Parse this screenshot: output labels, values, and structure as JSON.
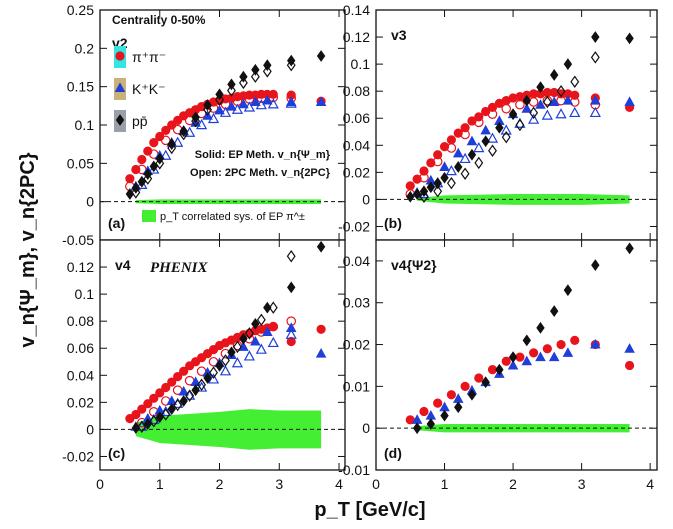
{
  "figure": {
    "ylabel": "v_n{Ψ_m}, v_n{2PC}",
    "xlabel": "p_T [GeV/c]",
    "centrality": "Centrality 0-50%",
    "experiment": "PHENIX",
    "legend": {
      "pion": "π⁺π⁻",
      "kaon": "K⁺K⁻",
      "proton": "pp̄",
      "solid_note": "Solid: EP Meth. v_n{Ψ_m}",
      "open_note": "Open: 2PC Meth. v_n{2PC}",
      "sys_note": "p_T correlated sys. of EP π^±"
    },
    "colors": {
      "pion": "#e8141c",
      "kaon": "#1f3fd8",
      "proton": "#111111",
      "sys_band": "#44ee33",
      "pion_box": "#33e6e6",
      "kaon_box": "#c8b27a",
      "proton_box": "#9aa0aa"
    }
  },
  "chart_data": [
    {
      "type": "scatter",
      "panel_label": "(a)",
      "harmonic_label": "v2",
      "xlim": [
        0,
        4.1
      ],
      "ylim": [
        -0.05,
        0.25
      ],
      "yticks": [
        "-0.05",
        "0",
        "0.05",
        "0.1",
        "0.15",
        "0.2",
        "0.25"
      ],
      "xticks": [
        "0",
        "1",
        "2",
        "3",
        "4"
      ],
      "series": [
        {
          "name": "π⁺π⁻",
          "method": "EP",
          "x": [
            0.5,
            0.6,
            0.7,
            0.8,
            0.9,
            1.0,
            1.1,
            1.2,
            1.3,
            1.4,
            1.5,
            1.6,
            1.7,
            1.8,
            1.9,
            2.0,
            2.1,
            2.2,
            2.3,
            2.4,
            2.5,
            2.6,
            2.7,
            2.8,
            2.9,
            3.2,
            3.7
          ],
          "y": [
            0.03,
            0.042,
            0.055,
            0.066,
            0.077,
            0.085,
            0.093,
            0.1,
            0.106,
            0.112,
            0.116,
            0.12,
            0.124,
            0.127,
            0.13,
            0.132,
            0.134,
            0.135,
            0.137,
            0.138,
            0.139,
            0.139,
            0.14,
            0.14,
            0.14,
            0.139,
            0.131
          ]
        },
        {
          "name": "π⁺π⁻",
          "method": "2PC",
          "x": [
            0.5,
            0.7,
            0.9,
            1.1,
            1.3,
            1.5,
            1.7,
            1.9,
            2.1,
            2.3,
            2.5,
            2.7,
            2.9,
            3.2
          ],
          "y": [
            0.02,
            0.042,
            0.062,
            0.08,
            0.094,
            0.106,
            0.115,
            0.122,
            0.127,
            0.131,
            0.134,
            0.135,
            0.136,
            0.135
          ]
        },
        {
          "name": "K⁺K⁻",
          "method": "EP",
          "x": [
            0.6,
            0.8,
            1.0,
            1.2,
            1.4,
            1.6,
            1.8,
            2.0,
            2.2,
            2.4,
            2.6,
            2.8,
            3.2,
            3.7
          ],
          "y": [
            0.02,
            0.04,
            0.06,
            0.077,
            0.092,
            0.103,
            0.112,
            0.119,
            0.124,
            0.127,
            0.13,
            0.132,
            0.13,
            0.13
          ]
        },
        {
          "name": "K⁺K⁻",
          "method": "2PC",
          "x": [
            0.7,
            0.9,
            1.1,
            1.3,
            1.5,
            1.7,
            1.9,
            2.1,
            2.3,
            2.5,
            2.7,
            2.9,
            3.2
          ],
          "y": [
            0.022,
            0.042,
            0.06,
            0.077,
            0.09,
            0.1,
            0.108,
            0.116,
            0.12,
            0.123,
            0.126,
            0.127,
            0.128
          ]
        },
        {
          "name": "pp̄",
          "method": "EP",
          "x": [
            0.5,
            0.6,
            0.7,
            0.8,
            0.9,
            1.0,
            1.2,
            1.4,
            1.6,
            1.8,
            2.0,
            2.2,
            2.4,
            2.6,
            2.8,
            3.2,
            3.7
          ],
          "y": [
            0.01,
            0.018,
            0.026,
            0.036,
            0.046,
            0.056,
            0.075,
            0.092,
            0.11,
            0.126,
            0.14,
            0.153,
            0.163,
            0.172,
            0.178,
            0.184,
            0.19
          ]
        },
        {
          "name": "pp̄",
          "method": "2PC",
          "x": [
            0.6,
            0.8,
            1.0,
            1.2,
            1.4,
            1.6,
            1.8,
            2.0,
            2.2,
            2.4,
            2.6,
            2.8,
            3.2
          ],
          "y": [
            0.012,
            0.03,
            0.05,
            0.07,
            0.088,
            0.105,
            0.12,
            0.133,
            0.145,
            0.155,
            0.163,
            0.17,
            0.178
          ]
        },
        {
          "name": "sys",
          "x": [
            0.6,
            1.0,
            2.0,
            3.0,
            3.7
          ],
          "band_halfwidth": [
            0.002,
            0.003,
            0.003,
            0.003,
            0.003
          ]
        }
      ]
    },
    {
      "type": "scatter",
      "panel_label": "(b)",
      "harmonic_label": "v3",
      "xlim": [
        0,
        4.1
      ],
      "ylim": [
        -0.03,
        0.14
      ],
      "yticks": [
        "-0.02",
        "0",
        "0.02",
        "0.04",
        "0.06",
        "0.08",
        "0.1",
        "0.12",
        "0.14"
      ],
      "xticks": [
        "0",
        "1",
        "2",
        "3",
        "4"
      ],
      "series": [
        {
          "name": "π⁺π⁻",
          "method": "EP",
          "x": [
            0.5,
            0.6,
            0.7,
            0.8,
            0.9,
            1.0,
            1.1,
            1.2,
            1.3,
            1.4,
            1.5,
            1.6,
            1.7,
            1.8,
            1.9,
            2.0,
            2.1,
            2.2,
            2.3,
            2.4,
            2.5,
            2.6,
            2.7,
            2.8,
            2.9,
            3.2,
            3.7
          ],
          "y": [
            0.01,
            0.015,
            0.021,
            0.027,
            0.033,
            0.039,
            0.044,
            0.049,
            0.053,
            0.058,
            0.061,
            0.065,
            0.068,
            0.071,
            0.073,
            0.075,
            0.076,
            0.077,
            0.078,
            0.078,
            0.079,
            0.079,
            0.078,
            0.078,
            0.077,
            0.075,
            0.068
          ]
        },
        {
          "name": "π⁺π⁻",
          "method": "2PC",
          "x": [
            0.5,
            0.7,
            0.9,
            1.1,
            1.3,
            1.5,
            1.7,
            1.9,
            2.1,
            2.3,
            2.5,
            2.7,
            2.9,
            3.2
          ],
          "y": [
            0.004,
            0.016,
            0.028,
            0.038,
            0.048,
            0.057,
            0.063,
            0.067,
            0.07,
            0.072,
            0.073,
            0.073,
            0.072,
            0.07
          ]
        },
        {
          "name": "K⁺K⁻",
          "method": "EP",
          "x": [
            0.6,
            0.8,
            1.0,
            1.2,
            1.4,
            1.6,
            1.8,
            2.0,
            2.2,
            2.4,
            2.6,
            2.8,
            3.2,
            3.7
          ],
          "y": [
            0.005,
            0.014,
            0.024,
            0.034,
            0.043,
            0.051,
            0.058,
            0.063,
            0.067,
            0.07,
            0.072,
            0.073,
            0.073,
            0.072
          ]
        },
        {
          "name": "K⁺K⁻",
          "method": "2PC",
          "x": [
            0.7,
            0.9,
            1.1,
            1.3,
            1.5,
            1.7,
            1.9,
            2.1,
            2.3,
            2.5,
            2.7,
            2.9,
            3.2
          ],
          "y": [
            0.004,
            0.012,
            0.021,
            0.03,
            0.038,
            0.045,
            0.051,
            0.056,
            0.059,
            0.062,
            0.063,
            0.064,
            0.064
          ]
        },
        {
          "name": "pp̄",
          "method": "EP",
          "x": [
            0.5,
            0.6,
            0.7,
            0.8,
            0.9,
            1.0,
            1.2,
            1.4,
            1.6,
            1.8,
            2.0,
            2.2,
            2.4,
            2.6,
            2.8,
            3.2,
            3.7
          ],
          "y": [
            0.002,
            0.004,
            0.006,
            0.009,
            0.012,
            0.016,
            0.024,
            0.033,
            0.043,
            0.053,
            0.063,
            0.073,
            0.083,
            0.092,
            0.1,
            0.12,
            0.119
          ]
        },
        {
          "name": "pp̄",
          "method": "2PC",
          "x": [
            0.7,
            0.9,
            1.1,
            1.3,
            1.5,
            1.7,
            1.9,
            2.1,
            2.3,
            2.5,
            2.7,
            2.9,
            3.2
          ],
          "y": [
            0.002,
            0.006,
            0.012,
            0.019,
            0.027,
            0.036,
            0.046,
            0.055,
            0.064,
            0.072,
            0.08,
            0.087,
            0.105
          ]
        },
        {
          "name": "sys",
          "x": [
            0.6,
            1.0,
            2.0,
            3.0,
            3.7
          ],
          "band_halfwidth": [
            0.001,
            0.003,
            0.004,
            0.004,
            0.003
          ]
        }
      ]
    },
    {
      "type": "scatter",
      "panel_label": "(c)",
      "harmonic_label": "v4",
      "xlim": [
        0,
        4.1
      ],
      "ylim": [
        -0.03,
        0.14
      ],
      "yticks": [
        "-0.02",
        "0",
        "0.02",
        "0.04",
        "0.06",
        "0.08",
        "0.1",
        "0.12"
      ],
      "xticks": [
        "0",
        "1",
        "2",
        "3",
        "4"
      ],
      "series": [
        {
          "name": "π⁺π⁻",
          "method": "EP",
          "x": [
            0.5,
            0.6,
            0.7,
            0.8,
            0.9,
            1.0,
            1.1,
            1.2,
            1.3,
            1.4,
            1.5,
            1.6,
            1.7,
            1.8,
            1.9,
            2.0,
            2.1,
            2.2,
            2.3,
            2.4,
            2.5,
            2.6,
            2.7,
            2.8,
            2.9,
            3.2,
            3.7
          ],
          "y": [
            0.008,
            0.011,
            0.015,
            0.019,
            0.023,
            0.027,
            0.031,
            0.035,
            0.039,
            0.043,
            0.047,
            0.05,
            0.053,
            0.056,
            0.059,
            0.062,
            0.064,
            0.066,
            0.068,
            0.07,
            0.071,
            0.073,
            0.074,
            0.075,
            0.076,
            0.065,
            0.074
          ]
        },
        {
          "name": "π⁺π⁻",
          "method": "2PC",
          "x": [
            0.7,
            0.9,
            1.1,
            1.3,
            1.5,
            1.7,
            1.9,
            2.1,
            2.3,
            2.5,
            2.7,
            2.9,
            3.2
          ],
          "y": [
            0.005,
            0.013,
            0.021,
            0.029,
            0.036,
            0.043,
            0.05,
            0.056,
            0.062,
            0.067,
            0.072,
            0.076,
            0.08
          ]
        },
        {
          "name": "K⁺K⁻",
          "method": "EP",
          "x": [
            0.6,
            0.8,
            1.0,
            1.2,
            1.4,
            1.6,
            1.8,
            2.0,
            2.2,
            2.4,
            2.6,
            2.8,
            3.2,
            3.7
          ],
          "y": [
            0.002,
            0.008,
            0.014,
            0.021,
            0.028,
            0.035,
            0.042,
            0.049,
            0.055,
            0.061,
            0.065,
            0.072,
            0.075,
            0.056
          ]
        },
        {
          "name": "K⁺K⁻",
          "method": "2PC",
          "x": [
            0.7,
            0.9,
            1.1,
            1.3,
            1.5,
            1.7,
            1.9,
            2.1,
            2.3,
            2.5,
            2.7,
            2.9,
            3.2
          ],
          "y": [
            0.002,
            0.007,
            0.013,
            0.019,
            0.025,
            0.031,
            0.037,
            0.043,
            0.049,
            0.054,
            0.059,
            0.064,
            0.07
          ]
        },
        {
          "name": "pp̄",
          "method": "EP",
          "x": [
            0.6,
            0.8,
            1.0,
            1.2,
            1.4,
            1.6,
            1.8,
            2.0,
            2.2,
            2.4,
            2.6,
            2.8,
            3.2,
            3.7
          ],
          "y": [
            0.001,
            0.004,
            0.009,
            0.015,
            0.021,
            0.029,
            0.038,
            0.047,
            0.057,
            0.067,
            0.078,
            0.09,
            0.105,
            0.135
          ]
        },
        {
          "name": "pp̄",
          "method": "2PC",
          "x": [
            0.7,
            0.9,
            1.1,
            1.3,
            1.5,
            1.7,
            1.9,
            2.1,
            2.3,
            2.5,
            2.7,
            2.9,
            3.2
          ],
          "y": [
            0.002,
            0.006,
            0.011,
            0.018,
            0.025,
            0.033,
            0.042,
            0.051,
            0.061,
            0.071,
            0.081,
            0.09,
            0.128
          ]
        },
        {
          "name": "sys",
          "x": [
            0.6,
            1.0,
            2.0,
            2.5,
            3.0,
            3.7
          ],
          "band_halfwidth": [
            0.005,
            0.01,
            0.013,
            0.015,
            0.014,
            0.014
          ]
        }
      ]
    },
    {
      "type": "scatter",
      "panel_label": "(d)",
      "harmonic_label": "v4{Ψ2}",
      "xlim": [
        0,
        4.1
      ],
      "ylim": [
        -0.01,
        0.045
      ],
      "yticks": [
        "-0.01",
        "0",
        "0.01",
        "0.02",
        "0.03",
        "0.04"
      ],
      "xticks": [
        "0",
        "1",
        "2",
        "3",
        "4"
      ],
      "series": [
        {
          "name": "π⁺π⁻",
          "method": "EP",
          "x": [
            0.5,
            0.7,
            0.9,
            1.1,
            1.3,
            1.5,
            1.7,
            1.9,
            2.1,
            2.3,
            2.5,
            2.7,
            2.9,
            3.2,
            3.7
          ],
          "y": [
            0.002,
            0.004,
            0.006,
            0.008,
            0.01,
            0.012,
            0.014,
            0.016,
            0.017,
            0.018,
            0.019,
            0.02,
            0.021,
            0.02,
            0.015
          ]
        },
        {
          "name": "K⁺K⁻",
          "method": "EP",
          "x": [
            0.6,
            0.8,
            1.0,
            1.2,
            1.4,
            1.6,
            1.8,
            2.0,
            2.2,
            2.4,
            2.6,
            2.8,
            3.2,
            3.7
          ],
          "y": [
            0.002,
            0.003,
            0.005,
            0.007,
            0.009,
            0.011,
            0.013,
            0.015,
            0.016,
            0.017,
            0.017,
            0.018,
            0.02,
            0.019
          ]
        },
        {
          "name": "pp̄",
          "method": "EP",
          "x": [
            0.6,
            0.8,
            1.0,
            1.2,
            1.4,
            1.6,
            1.8,
            2.0,
            2.2,
            2.4,
            2.6,
            2.8,
            3.2,
            3.7
          ],
          "y": [
            0.0,
            0.001,
            0.003,
            0.005,
            0.008,
            0.011,
            0.014,
            0.017,
            0.021,
            0.024,
            0.028,
            0.033,
            0.039,
            0.043
          ]
        },
        {
          "name": "sys",
          "x": [
            0.6,
            1.0,
            2.0,
            3.0,
            3.7
          ],
          "band_halfwidth": [
            0.0005,
            0.001,
            0.001,
            0.001,
            0.001
          ]
        }
      ]
    }
  ]
}
